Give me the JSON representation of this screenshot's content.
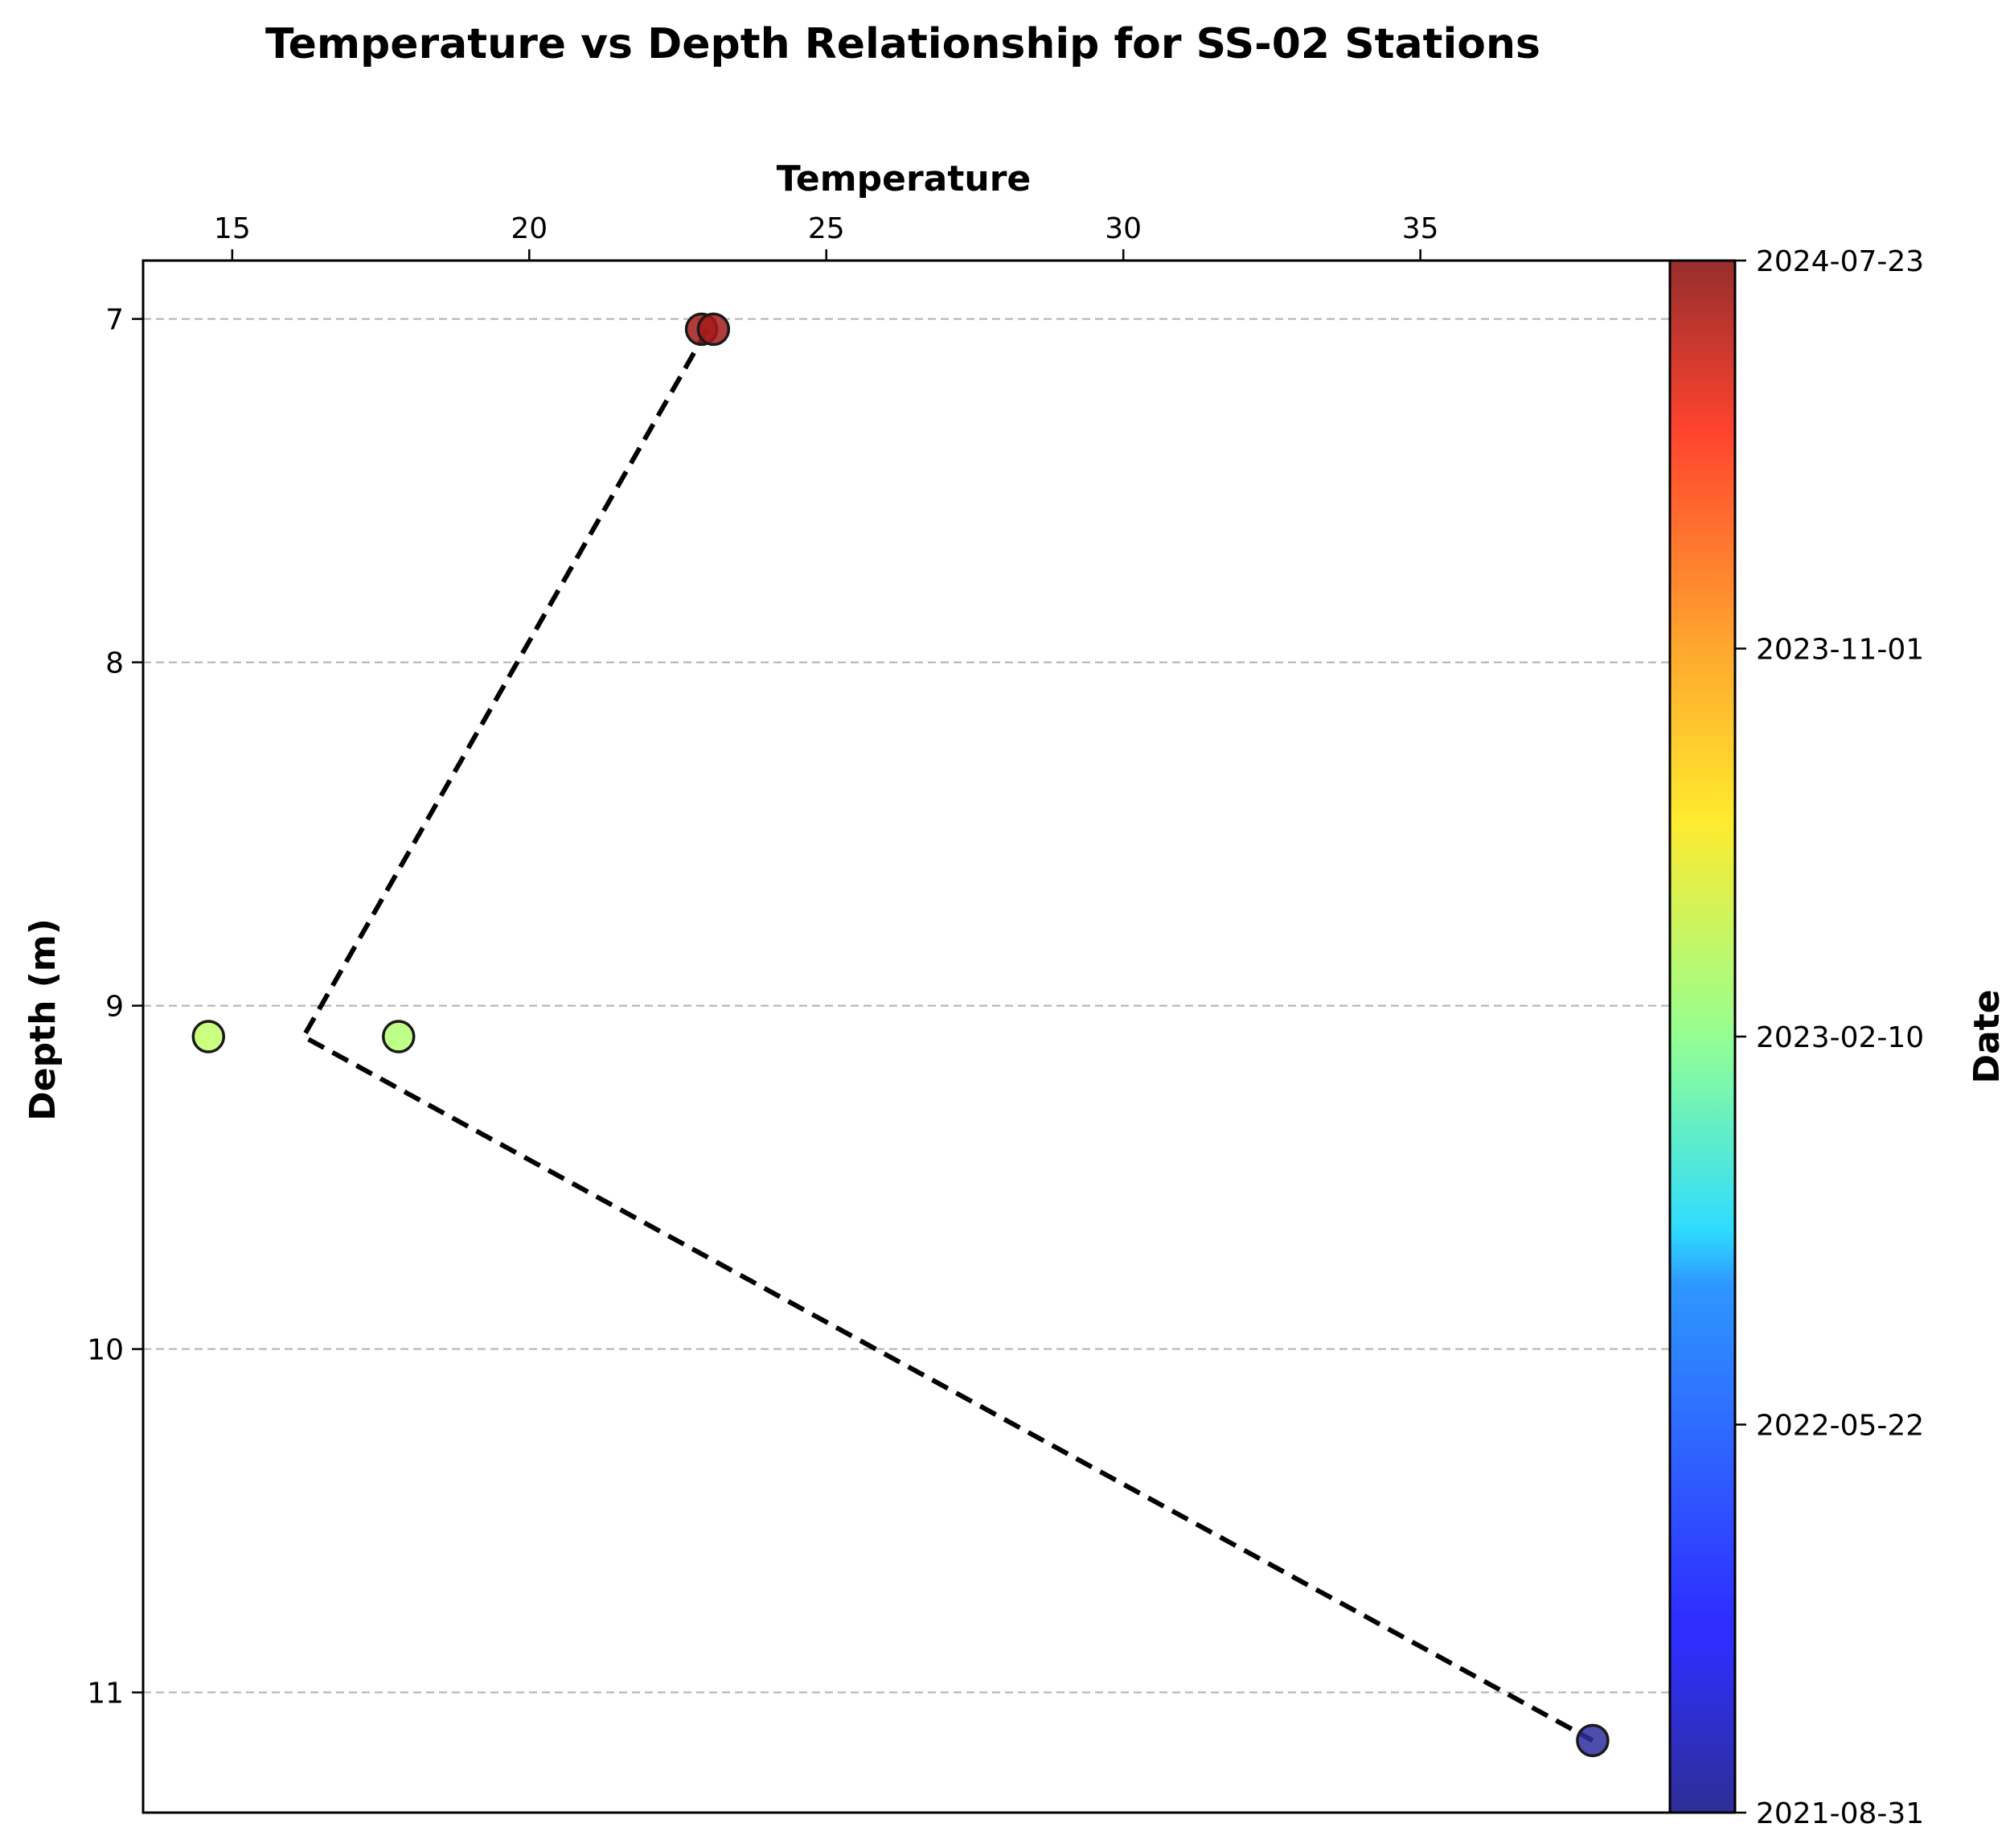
{
  "chart_data": {
    "type": "scatter",
    "title": "Temperature vs Depth Relationship for SS-02 Stations",
    "xlabel": "Temperature",
    "ylabel": "Depth (m)",
    "x_axis_position": "top",
    "y_inverted": true,
    "xlim": [
      13.5,
      39.2
    ],
    "ylim": [
      11.35,
      6.83
    ],
    "xticks": [
      15,
      20,
      25,
      30,
      35
    ],
    "yticks": [
      7,
      8,
      9,
      10,
      11
    ],
    "grid": "horizontal-dashed",
    "colorbar": {
      "label": "Date",
      "colormap": "jet",
      "ticks": [
        "2024-07-23",
        "2023-11-01",
        "2023-02-10",
        "2022-05-22",
        "2021-08-31"
      ]
    },
    "points": [
      {
        "temperature": 22.9,
        "depth": 7.03,
        "color": "#a41a1a"
      },
      {
        "temperature": 23.1,
        "depth": 7.03,
        "color": "#a41a1a"
      },
      {
        "temperature": 14.6,
        "depth": 9.09,
        "color": "#c2ff6a"
      },
      {
        "temperature": 17.8,
        "depth": 9.09,
        "color": "#b3ff74"
      },
      {
        "temperature": 37.9,
        "depth": 11.14,
        "color": "#2d2e9d"
      }
    ],
    "trend_line": {
      "style": "dashed",
      "color": "#000000",
      "points": [
        {
          "temperature": 23.0,
          "depth": 7.03
        },
        {
          "temperature": 16.2,
          "depth": 9.09
        },
        {
          "temperature": 37.9,
          "depth": 11.14
        }
      ]
    }
  }
}
